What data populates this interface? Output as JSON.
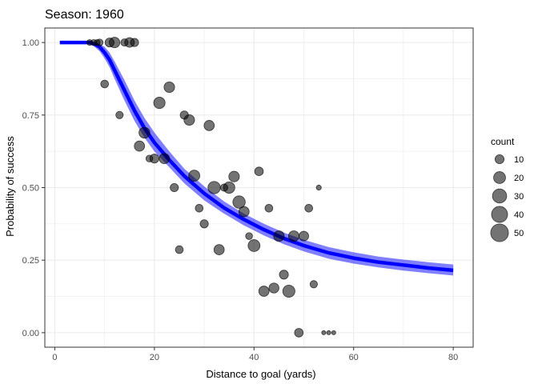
{
  "chart_data": {
    "type": "scatter",
    "title": "Season: 1960",
    "xlabel": "Distance to goal (yards)",
    "ylabel": "Probability of success",
    "xlim": [
      -2,
      84
    ],
    "ylim": [
      -0.05,
      1.05
    ],
    "x_ticks": [
      0,
      20,
      40,
      60,
      80
    ],
    "y_ticks": [
      0.0,
      0.25,
      0.5,
      0.75,
      1.0
    ],
    "x_tick_labels": [
      "0",
      "20",
      "40",
      "60",
      "80"
    ],
    "y_tick_labels": [
      "0.00",
      "0.25",
      "0.50",
      "0.75",
      "1.00"
    ],
    "grid": true,
    "colors": {
      "fit_line": "#0000ff",
      "ribbon": "#0000ff",
      "points": "#000000",
      "grid": "#ebebeb",
      "panel_border": "#333333"
    },
    "fit": {
      "x": [
        1,
        4,
        7,
        8,
        9,
        10,
        11,
        12,
        14,
        16,
        18,
        20,
        23,
        26,
        30,
        34,
        38,
        42,
        46,
        50,
        55,
        60,
        65,
        70,
        75,
        80
      ],
      "y": [
        1.0,
        1.0,
        1.0,
        0.995,
        0.985,
        0.965,
        0.94,
        0.905,
        0.835,
        0.765,
        0.705,
        0.655,
        0.595,
        0.54,
        0.48,
        0.43,
        0.39,
        0.355,
        0.325,
        0.3,
        0.275,
        0.257,
        0.243,
        0.233,
        0.223,
        0.215
      ],
      "lower": [
        1.0,
        1.0,
        0.995,
        0.985,
        0.97,
        0.945,
        0.915,
        0.875,
        0.8,
        0.73,
        0.672,
        0.625,
        0.57,
        0.515,
        0.456,
        0.41,
        0.37,
        0.335,
        0.305,
        0.28,
        0.255,
        0.238,
        0.225,
        0.214,
        0.205,
        0.197
      ],
      "upper": [
        1.0,
        1.0,
        1.0,
        1.0,
        0.995,
        0.985,
        0.965,
        0.935,
        0.87,
        0.8,
        0.74,
        0.69,
        0.625,
        0.565,
        0.504,
        0.452,
        0.41,
        0.375,
        0.345,
        0.32,
        0.295,
        0.277,
        0.262,
        0.252,
        0.243,
        0.235
      ]
    },
    "points": [
      {
        "x": 7,
        "y": 1.0,
        "count": 3
      },
      {
        "x": 7.8,
        "y": 1.0,
        "count": 3
      },
      {
        "x": 8.5,
        "y": 1.0,
        "count": 3
      },
      {
        "x": 9,
        "y": 1.0,
        "count": 5
      },
      {
        "x": 10,
        "y": 0.857,
        "count": 7
      },
      {
        "x": 11,
        "y": 1.0,
        "count": 10
      },
      {
        "x": 12,
        "y": 1.0,
        "count": 15
      },
      {
        "x": 13,
        "y": 0.75,
        "count": 6
      },
      {
        "x": 14,
        "y": 1.0,
        "count": 6
      },
      {
        "x": 15,
        "y": 1.0,
        "count": 12
      },
      {
        "x": 16,
        "y": 1.0,
        "count": 8
      },
      {
        "x": 17,
        "y": 0.643,
        "count": 14
      },
      {
        "x": 18,
        "y": 0.689,
        "count": 16
      },
      {
        "x": 19,
        "y": 0.6,
        "count": 5
      },
      {
        "x": 20,
        "y": 0.6,
        "count": 10
      },
      {
        "x": 21,
        "y": 0.792,
        "count": 18
      },
      {
        "x": 22,
        "y": 0.6,
        "count": 14
      },
      {
        "x": 23,
        "y": 0.846,
        "count": 15
      },
      {
        "x": 24,
        "y": 0.5,
        "count": 8
      },
      {
        "x": 25,
        "y": 0.286,
        "count": 7
      },
      {
        "x": 26,
        "y": 0.75,
        "count": 8
      },
      {
        "x": 27,
        "y": 0.733,
        "count": 15
      },
      {
        "x": 28,
        "y": 0.541,
        "count": 17
      },
      {
        "x": 29,
        "y": 0.429,
        "count": 7
      },
      {
        "x": 30,
        "y": 0.375,
        "count": 8
      },
      {
        "x": 31,
        "y": 0.714,
        "count": 14
      },
      {
        "x": 32,
        "y": 0.5,
        "count": 22
      },
      {
        "x": 33,
        "y": 0.286,
        "count": 14
      },
      {
        "x": 34,
        "y": 0.5,
        "count": 6
      },
      {
        "x": 35,
        "y": 0.5,
        "count": 18
      },
      {
        "x": 36,
        "y": 0.538,
        "count": 15
      },
      {
        "x": 37,
        "y": 0.45,
        "count": 22
      },
      {
        "x": 38,
        "y": 0.417,
        "count": 14
      },
      {
        "x": 39,
        "y": 0.333,
        "count": 5
      },
      {
        "x": 40,
        "y": 0.3,
        "count": 20
      },
      {
        "x": 41,
        "y": 0.556,
        "count": 9
      },
      {
        "x": 42,
        "y": 0.143,
        "count": 14
      },
      {
        "x": 43,
        "y": 0.429,
        "count": 7
      },
      {
        "x": 44,
        "y": 0.154,
        "count": 13
      },
      {
        "x": 45,
        "y": 0.333,
        "count": 15
      },
      {
        "x": 46,
        "y": 0.2,
        "count": 10
      },
      {
        "x": 47,
        "y": 0.143,
        "count": 21
      },
      {
        "x": 48,
        "y": 0.333,
        "count": 15
      },
      {
        "x": 49,
        "y": 0.0,
        "count": 9
      },
      {
        "x": 50,
        "y": 0.333,
        "count": 12
      },
      {
        "x": 51,
        "y": 0.429,
        "count": 7
      },
      {
        "x": 52,
        "y": 0.167,
        "count": 6
      },
      {
        "x": 53,
        "y": 0.5,
        "count": 2
      },
      {
        "x": 54,
        "y": 0.0,
        "count": 1
      },
      {
        "x": 55,
        "y": 0.0,
        "count": 1
      },
      {
        "x": 56,
        "y": 0.0,
        "count": 1
      }
    ],
    "legend": {
      "title": "count",
      "placement": "right",
      "entries": [
        {
          "label": "10",
          "count": 10
        },
        {
          "label": "20",
          "count": 20
        },
        {
          "label": "30",
          "count": 30
        },
        {
          "label": "40",
          "count": 40
        },
        {
          "label": "50",
          "count": 50
        }
      ]
    }
  }
}
